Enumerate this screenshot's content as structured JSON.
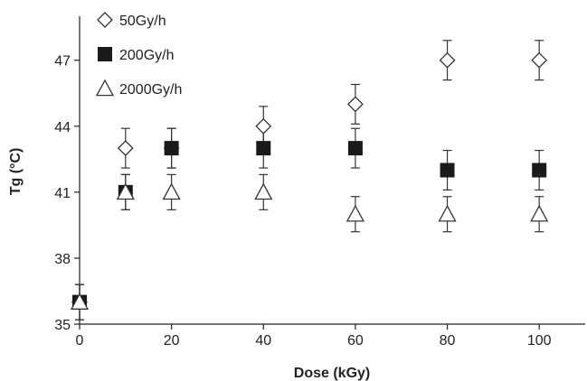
{
  "chart_data": {
    "type": "scatter",
    "title": "",
    "xlabel": "Dose (kGy)",
    "ylabel": "Tg (°C)",
    "xlim": [
      0,
      110
    ],
    "ylim": [
      35,
      49
    ],
    "xticks": [
      "0",
      "20",
      "40",
      "60",
      "80",
      "100"
    ],
    "yticks": [
      "35",
      "38",
      "41",
      "44",
      "47"
    ],
    "grid": false,
    "legend_position": "top-left",
    "x": [
      0,
      10,
      20,
      40,
      60,
      80,
      100
    ],
    "series": [
      {
        "name": "50Gy/h",
        "marker": "diamond-open",
        "values": [
          36,
          43,
          43,
          44,
          45,
          47,
          47
        ],
        "error": [
          0.8,
          0.9,
          0.9,
          0.9,
          0.9,
          0.9,
          0.9
        ]
      },
      {
        "name": "200Gy/h",
        "marker": "square-filled",
        "values": [
          36,
          41,
          43,
          43,
          43,
          42,
          42
        ],
        "error": [
          0.8,
          0.8,
          0.9,
          0.9,
          0.9,
          0.9,
          0.9
        ]
      },
      {
        "name": "2000Gy/h",
        "marker": "triangle-open",
        "values": [
          36,
          41,
          41,
          41,
          40,
          40,
          40
        ],
        "error": [
          0.8,
          0.8,
          0.8,
          0.8,
          0.8,
          0.8,
          0.8
        ]
      }
    ],
    "colors": {
      "marker_stroke": "#333333",
      "marker_fill": "#1a1a1a",
      "axis": "#222222"
    }
  }
}
